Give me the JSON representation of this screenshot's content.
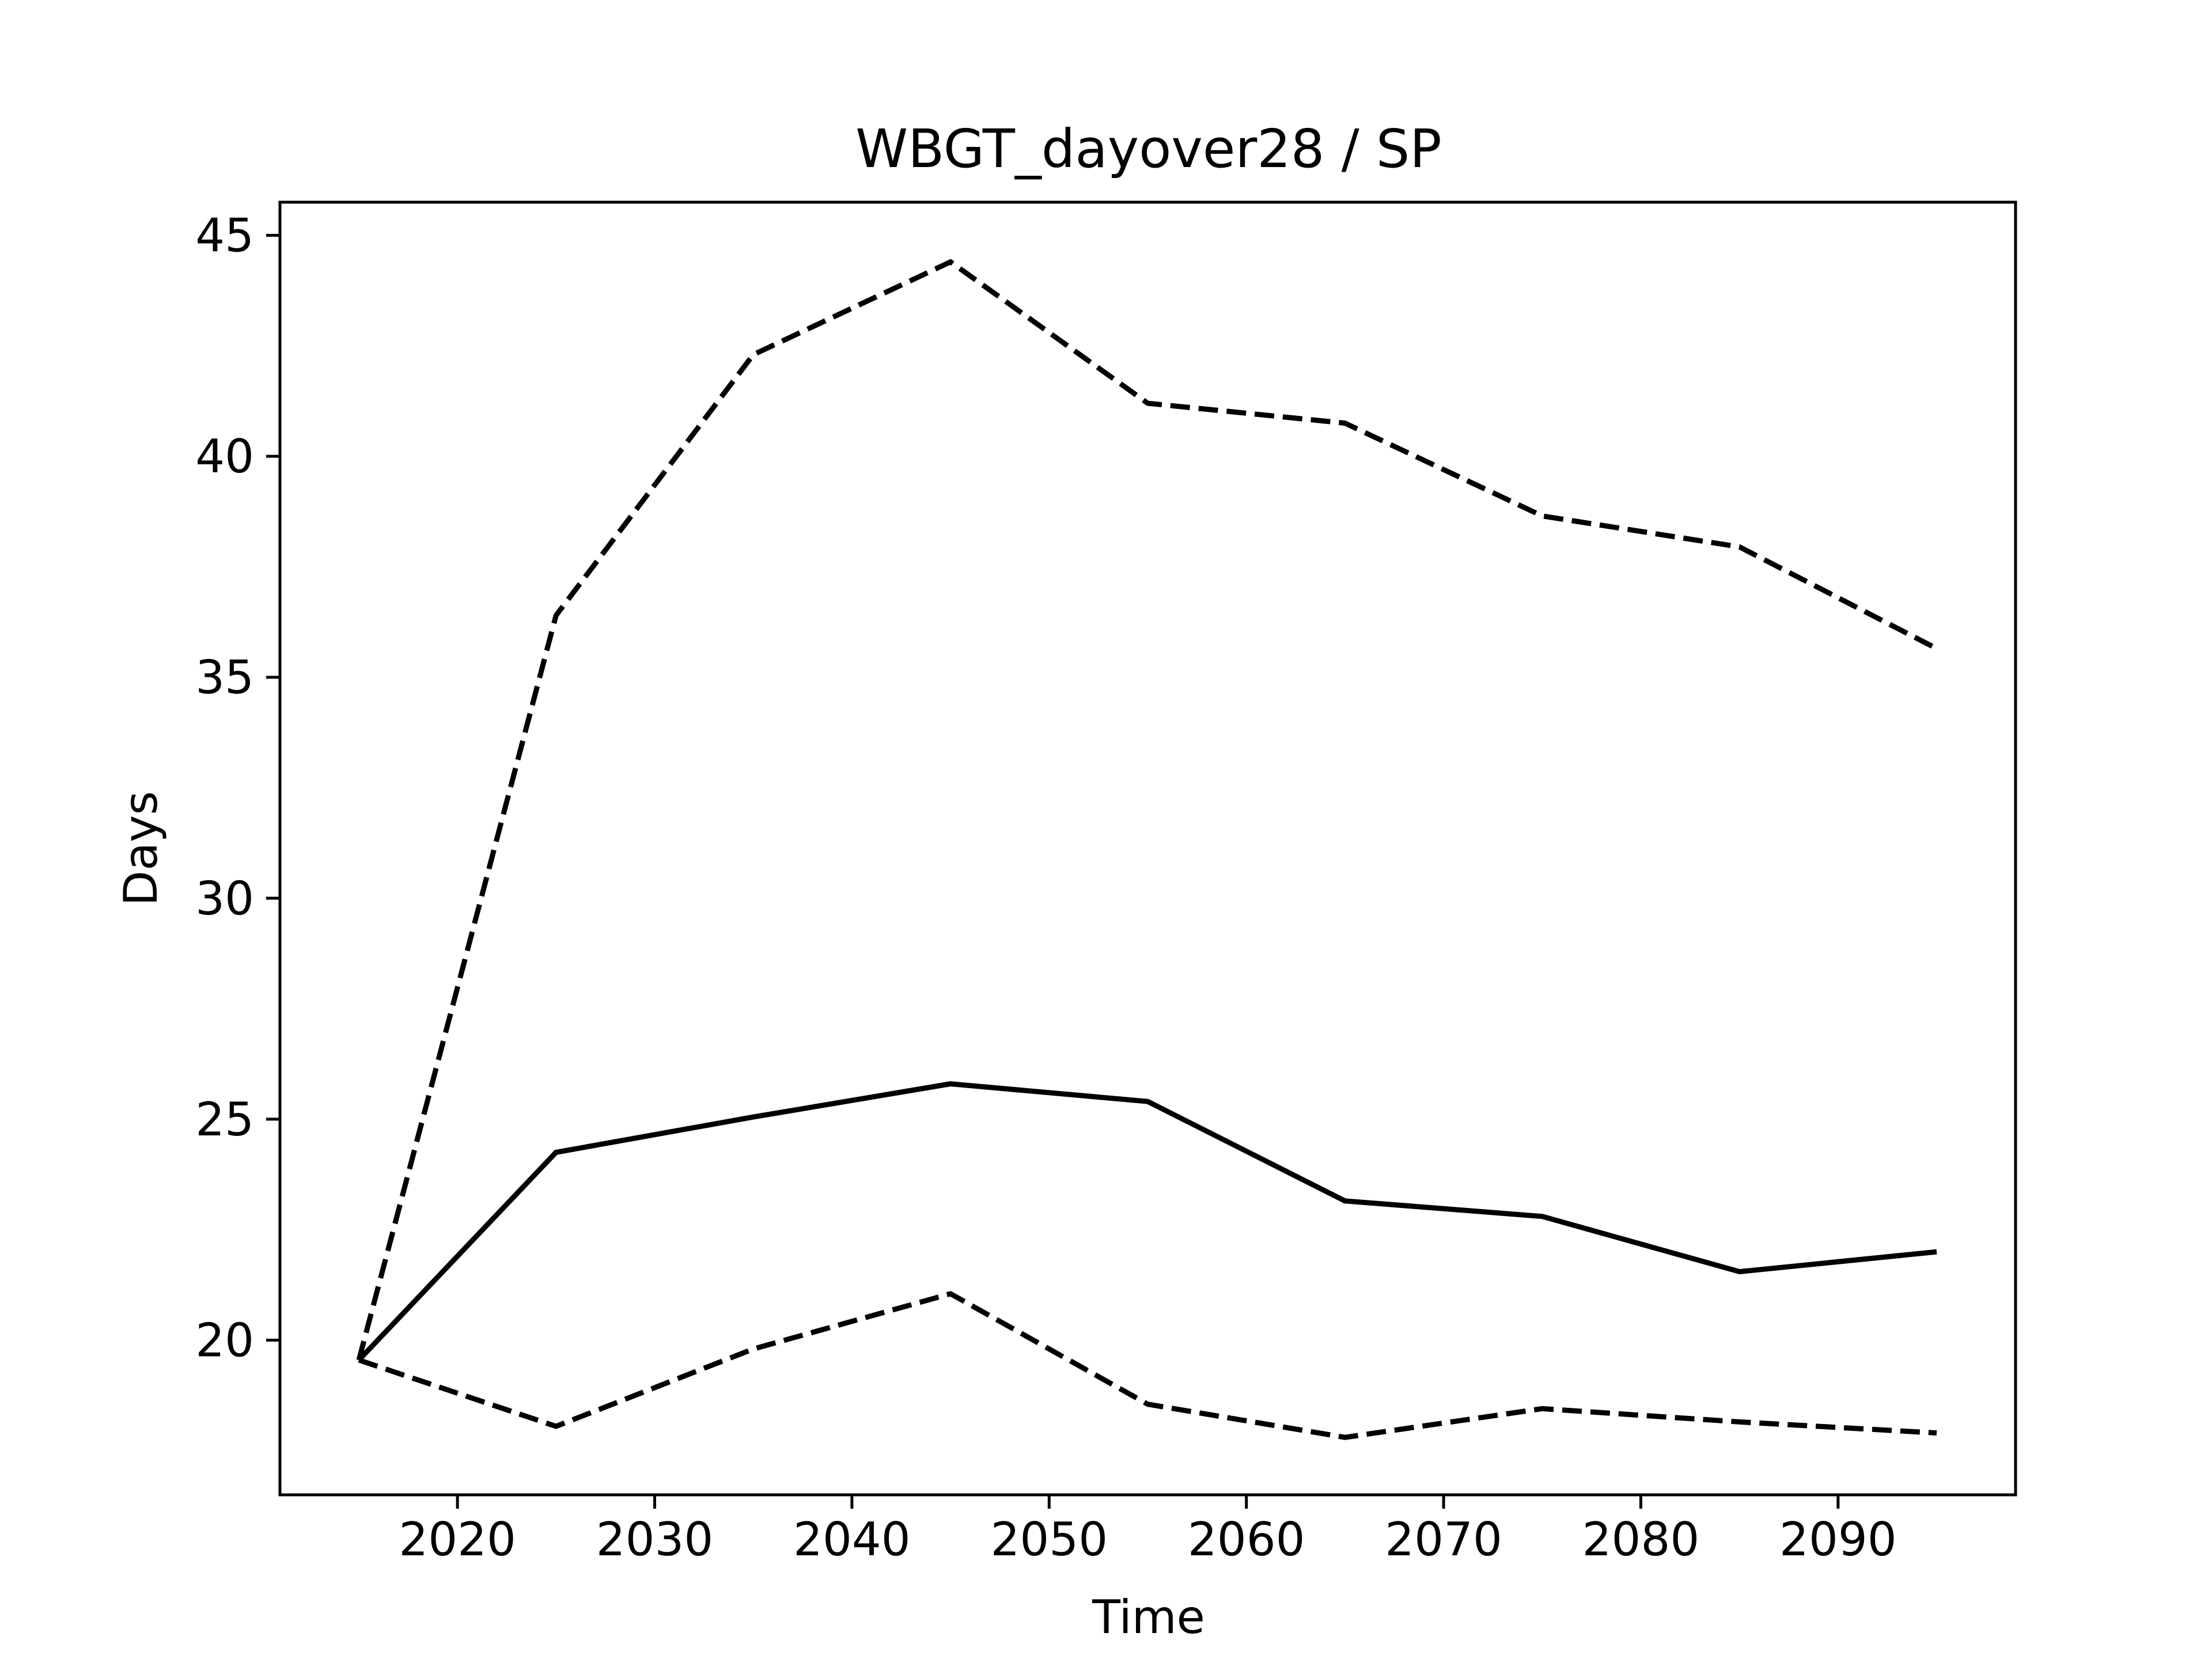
{
  "chart_data": {
    "type": "line",
    "title": "WBGT_dayover28 / SP",
    "xlabel": "Time",
    "ylabel": "Days",
    "xlim": [
      2011,
      2099
    ],
    "ylim": [
      16.5,
      45.75
    ],
    "xticks": [
      2020,
      2030,
      2040,
      2050,
      2060,
      2070,
      2080,
      2090
    ],
    "yticks": [
      20,
      25,
      30,
      35,
      40,
      45
    ],
    "grid": false,
    "x": [
      2015,
      2025,
      2035,
      2045,
      2055,
      2065,
      2075,
      2085,
      2095
    ],
    "series": [
      {
        "style": "solid",
        "color": "#000000",
        "values": [
          19.55,
          24.25,
          25.05,
          25.8,
          25.4,
          23.15,
          22.8,
          21.55,
          22.0
        ]
      },
      {
        "style": "dashed",
        "color": "#000000",
        "values": [
          19.55,
          36.4,
          42.3,
          44.4,
          41.2,
          40.75,
          38.65,
          37.95,
          35.65
        ]
      },
      {
        "style": "dashed",
        "color": "#000000",
        "values": [
          19.55,
          18.05,
          19.8,
          21.05,
          18.55,
          17.8,
          18.45,
          18.15,
          17.9
        ]
      }
    ]
  }
}
